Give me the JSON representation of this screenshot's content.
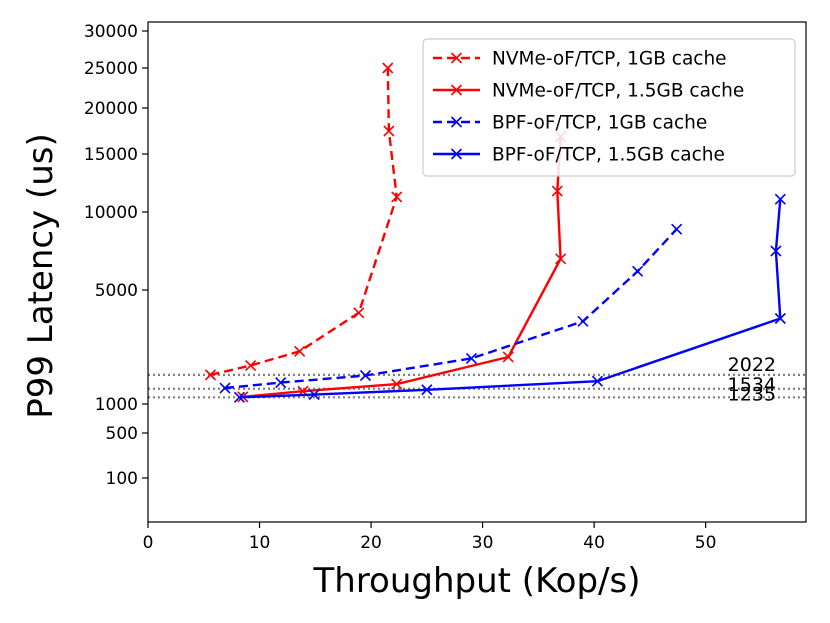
{
  "chart_data": {
    "type": "line",
    "title": "",
    "xlabel": "Throughput (Kop/s)",
    "ylabel": "P99 Latency (us)",
    "xlim": [
      0,
      59
    ],
    "x_ticks": [
      0,
      10,
      20,
      30,
      40,
      50
    ],
    "x_tick_labels": [
      "0",
      "10",
      "20",
      "30",
      "40",
      "50"
    ],
    "y_ticks": [
      100,
      500,
      1000,
      5000,
      10000,
      15000,
      20000,
      25000,
      30000
    ],
    "y_tick_labels": [
      "100",
      "500",
      "1000",
      "5000",
      "10000",
      "15000",
      "20000",
      "25000",
      "30000"
    ],
    "y_scale": "non-uniform (spacing as printed tick labels)",
    "grid": false,
    "legend_position": "top-right",
    "series": [
      {
        "name": "NVMe-oF/TCP, 1GB cache",
        "color": "#ff0000",
        "linestyle": "dashed",
        "marker": "x",
        "points": [
          [
            5.6,
            2022
          ],
          [
            9.2,
            2350
          ],
          [
            13.6,
            2850
          ],
          [
            18.9,
            4200
          ],
          [
            22.3,
            11300
          ],
          [
            21.6,
            17500
          ],
          [
            21.5,
            25000
          ]
        ]
      },
      {
        "name": "NVMe-oF/TCP, 1.5GB cache",
        "color": "#ff0000",
        "linestyle": "solid",
        "marker": "x",
        "points": [
          [
            8.5,
            1250
          ],
          [
            13.9,
            1450
          ],
          [
            22.3,
            1700
          ],
          [
            32.3,
            2650
          ],
          [
            37.0,
            7000
          ],
          [
            36.7,
            11800
          ],
          [
            37.0,
            16900
          ]
        ]
      },
      {
        "name": "BPF-oF/TCP, 1GB cache",
        "color": "#0000ff",
        "linestyle": "dashed",
        "marker": "x",
        "points": [
          [
            6.9,
            1560
          ],
          [
            11.9,
            1750
          ],
          [
            19.5,
            2000
          ],
          [
            29.0,
            2600
          ],
          [
            39.0,
            3900
          ],
          [
            43.9,
            6200
          ],
          [
            47.4,
            8900
          ]
        ]
      },
      {
        "name": "BPF-oF/TCP, 1.5GB cache",
        "color": "#0000ff",
        "linestyle": "solid",
        "marker": "x",
        "points": [
          [
            8.2,
            1235
          ],
          [
            14.9,
            1330
          ],
          [
            25.0,
            1500
          ],
          [
            40.3,
            1800
          ],
          [
            56.7,
            4000
          ],
          [
            56.3,
            7500
          ],
          [
            56.7,
            11100
          ]
        ]
      }
    ],
    "reference_lines": [
      {
        "value": 2022,
        "label": "2022",
        "color": "#808080",
        "linestyle": "dotted"
      },
      {
        "value": 1534,
        "label": "1534",
        "color": "#808080",
        "linestyle": "dotted"
      },
      {
        "value": 1235,
        "label": "1235",
        "color": "#808080",
        "linestyle": "dotted"
      }
    ]
  }
}
